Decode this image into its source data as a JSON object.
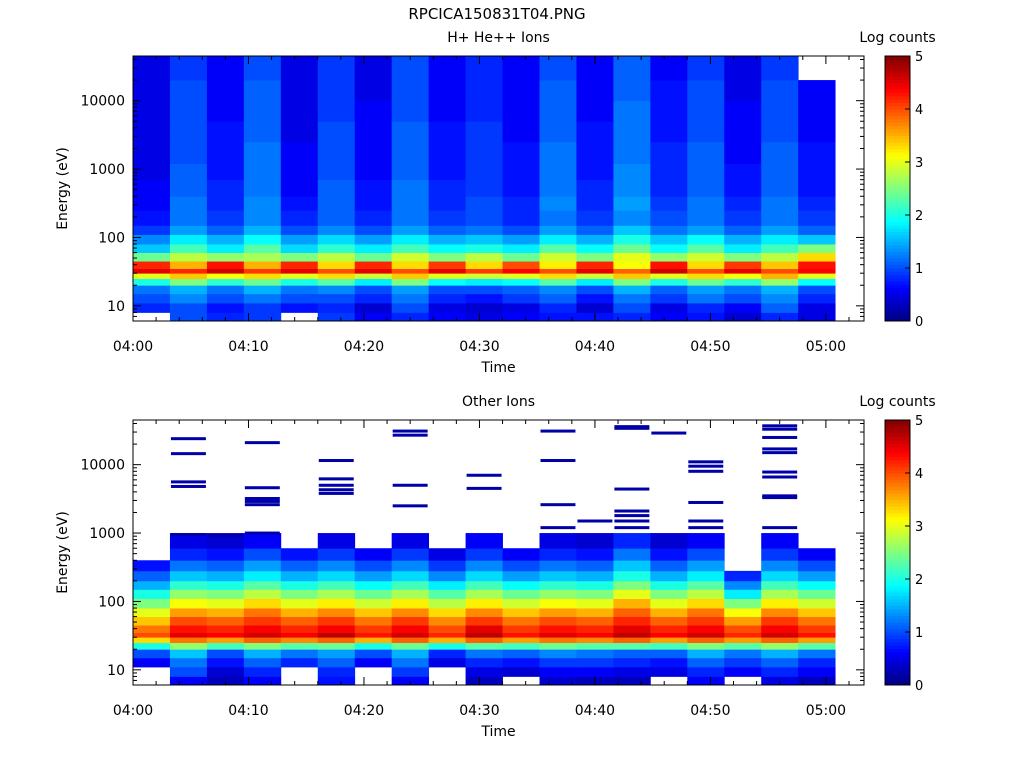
{
  "title": "RPCICA150831T04.PNG",
  "colormap": [
    "#00007f",
    "#0000ff",
    "#007fff",
    "#00ffff",
    "#7fff7f",
    "#ffff00",
    "#ff7f00",
    "#ff0000",
    "#7f0000"
  ],
  "chart_data": [
    {
      "type": "heatmap",
      "title": "H+ He++ Ions",
      "xlabel": "Time",
      "ylabel": "Energy (eV)",
      "x_tick_labels": [
        "04:00",
        "04:10",
        "04:20",
        "04:30",
        "04:40",
        "04:50",
        "05:00"
      ],
      "x_tick_minutes": [
        0,
        10,
        20,
        30,
        40,
        50,
        60
      ],
      "xlim_minutes": [
        0,
        63.3
      ],
      "y_scale": "log",
      "ylim": [
        6,
        45000
      ],
      "y_tick_labels": [
        "10",
        "100",
        "1000",
        "10000"
      ],
      "y_tick_values": [
        10,
        100,
        1000,
        10000
      ],
      "colorbar_label": "Log counts",
      "colorbar_range": [
        0,
        5
      ],
      "colorbar_tick_labels": [
        "0",
        "1",
        "2",
        "3",
        "4",
        "5"
      ],
      "grid": false,
      "time_bin_edges_minutes": [
        0,
        3.2,
        6.4,
        9.6,
        12.8,
        16.0,
        19.2,
        22.4,
        25.6,
        28.8,
        32.0,
        35.2,
        38.4,
        41.6,
        44.8,
        48.0,
        51.2,
        54.4,
        57.6,
        60.8
      ],
      "energy_bands_eV": [
        6,
        8,
        11,
        15,
        20,
        25,
        30,
        35,
        45,
        60,
        80,
        110,
        150,
        250,
        400,
        700,
        1200,
        2500,
        5000,
        10000,
        20000,
        45000
      ],
      "log_counts": [
        [
          null,
          1.0,
          0.8,
          0.9,
          null,
          0.9,
          0.6,
          0.8,
          0.6,
          0.5,
          0.6,
          0.7,
          0.7,
          0.8,
          0.6,
          0.7,
          0.4,
          0.8,
          0.5
        ],
        [
          0.8,
          1.0,
          0.7,
          0.9,
          0.7,
          0.8,
          0.4,
          1.0,
          0.5,
          0.4,
          0.5,
          0.8,
          0.4,
          1.0,
          0.5,
          0.8,
          0.6,
          1.1,
          0.5
        ],
        [
          1.0,
          1.3,
          1.0,
          1.2,
          1.0,
          1.0,
          0.8,
          1.2,
          0.8,
          0.7,
          0.9,
          1.1,
          0.7,
          1.2,
          0.9,
          1.2,
          1.0,
          1.3,
          0.8
        ],
        [
          1.2,
          1.5,
          1.2,
          1.5,
          1.2,
          1.3,
          1.0,
          1.4,
          1.0,
          1.0,
          1.1,
          1.3,
          1.0,
          1.5,
          1.1,
          1.4,
          1.2,
          1.5,
          1.0
        ],
        [
          2.0,
          2.5,
          2.1,
          2.4,
          2.0,
          2.3,
          1.8,
          2.5,
          1.9,
          1.8,
          1.9,
          2.3,
          1.8,
          2.5,
          2.0,
          2.4,
          2.1,
          2.6,
          1.9
        ],
        [
          3.0,
          3.4,
          3.1,
          3.3,
          3.0,
          3.3,
          2.9,
          3.4,
          3.0,
          2.9,
          3.0,
          3.3,
          2.9,
          3.4,
          3.0,
          3.3,
          3.1,
          3.5,
          3.0
        ],
        [
          4.5,
          4.2,
          4.6,
          4.1,
          4.5,
          4.0,
          4.5,
          4.0,
          4.5,
          4.1,
          4.4,
          4.0,
          4.5,
          3.9,
          4.6,
          4.0,
          4.5,
          4.0,
          4.4
        ],
        [
          4.2,
          3.5,
          4.3,
          3.5,
          4.2,
          3.3,
          4.2,
          3.3,
          4.1,
          3.3,
          4.0,
          3.2,
          4.2,
          3.1,
          4.3,
          3.3,
          4.1,
          3.4,
          4.3
        ],
        [
          2.4,
          2.8,
          2.6,
          2.7,
          2.5,
          2.8,
          2.4,
          2.9,
          2.5,
          2.8,
          2.4,
          2.9,
          2.5,
          3.0,
          2.6,
          2.9,
          2.5,
          2.8,
          3.3
        ],
        [
          1.6,
          2.2,
          1.8,
          2.3,
          1.7,
          2.1,
          1.8,
          2.2,
          1.9,
          2.0,
          1.8,
          2.3,
          1.9,
          2.4,
          1.9,
          2.3,
          1.8,
          2.2,
          2.5
        ],
        [
          1.3,
          1.8,
          1.5,
          1.9,
          1.4,
          1.7,
          1.4,
          1.8,
          1.5,
          1.6,
          1.4,
          1.8,
          1.5,
          2.0,
          1.6,
          1.9,
          1.5,
          1.8,
          1.6
        ],
        [
          0.9,
          1.4,
          1.1,
          1.5,
          1.0,
          1.3,
          1.0,
          1.4,
          1.1,
          1.2,
          1.0,
          1.4,
          1.1,
          1.6,
          1.2,
          1.4,
          1.1,
          1.4,
          1.1
        ],
        [
          0.7,
          1.2,
          0.9,
          1.3,
          0.8,
          1.1,
          0.8,
          1.2,
          0.9,
          1.0,
          0.8,
          1.2,
          0.9,
          1.3,
          1.0,
          1.2,
          0.9,
          1.2,
          0.9
        ],
        [
          0.6,
          1.2,
          0.8,
          1.3,
          0.7,
          1.1,
          0.7,
          1.2,
          0.8,
          1.0,
          0.8,
          1.3,
          0.8,
          1.4,
          0.9,
          1.2,
          0.8,
          1.2,
          0.8
        ],
        [
          0.6,
          1.1,
          0.8,
          1.2,
          0.6,
          1.1,
          0.7,
          1.2,
          0.8,
          0.9,
          0.7,
          1.2,
          0.8,
          1.3,
          0.8,
          1.1,
          0.7,
          1.1,
          0.7
        ],
        [
          0.5,
          1.1,
          0.7,
          1.2,
          0.6,
          1.0,
          0.6,
          1.1,
          0.7,
          0.9,
          0.7,
          1.2,
          0.7,
          1.3,
          0.8,
          1.1,
          0.7,
          1.1,
          0.7
        ],
        [
          0.5,
          1.0,
          0.7,
          1.2,
          0.6,
          1.0,
          0.6,
          1.1,
          0.7,
          0.9,
          0.7,
          1.2,
          0.7,
          1.2,
          0.8,
          1.1,
          0.6,
          1.1,
          0.7
        ],
        [
          0.5,
          1.0,
          0.7,
          1.1,
          0.5,
          1.0,
          0.6,
          1.1,
          0.7,
          0.9,
          0.6,
          1.1,
          0.7,
          1.2,
          0.7,
          1.0,
          0.6,
          1.0,
          0.6
        ],
        [
          0.5,
          1.0,
          0.6,
          1.1,
          0.5,
          0.9,
          0.6,
          1.0,
          0.6,
          0.8,
          0.6,
          1.1,
          0.6,
          1.2,
          0.7,
          1.0,
          0.6,
          1.0,
          0.6
        ],
        [
          0.5,
          1.0,
          0.6,
          1.1,
          0.5,
          0.9,
          0.5,
          1.0,
          0.6,
          0.8,
          0.6,
          1.1,
          0.6,
          1.1,
          0.7,
          1.0,
          0.5,
          1.0,
          0.6
        ],
        [
          0.5,
          0.9,
          0.6,
          1.0,
          0.5,
          0.9,
          0.5,
          1.0,
          0.6,
          0.8,
          0.6,
          1.0,
          0.6,
          1.1,
          0.6,
          0.9,
          0.5,
          0.9,
          null
        ]
      ]
    },
    {
      "type": "heatmap",
      "title": "Other Ions",
      "xlabel": "Time",
      "ylabel": "Energy (eV)",
      "x_tick_labels": [
        "04:00",
        "04:10",
        "04:20",
        "04:30",
        "04:40",
        "04:50",
        "05:00"
      ],
      "x_tick_minutes": [
        0,
        10,
        20,
        30,
        40,
        50,
        60
      ],
      "xlim_minutes": [
        0,
        63.3
      ],
      "y_scale": "log",
      "ylim": [
        6,
        45000
      ],
      "y_tick_labels": [
        "10",
        "100",
        "1000",
        "10000"
      ],
      "y_tick_values": [
        10,
        100,
        1000,
        10000
      ],
      "colorbar_label": "Log counts",
      "colorbar_range": [
        0,
        5
      ],
      "colorbar_tick_labels": [
        "0",
        "1",
        "2",
        "3",
        "4",
        "5"
      ],
      "grid": false,
      "time_bin_edges_minutes": [
        0,
        3.2,
        6.4,
        9.6,
        12.8,
        16.0,
        19.2,
        22.4,
        25.6,
        28.8,
        32.0,
        35.2,
        38.4,
        41.6,
        44.8,
        48.0,
        51.2,
        54.4,
        57.6,
        60.8
      ],
      "energy_bands_eV": [
        6,
        8,
        11,
        15,
        20,
        25,
        30,
        35,
        45,
        60,
        80,
        110,
        150,
        200,
        280,
        400,
        600,
        1000
      ],
      "log_counts": [
        [
          null,
          0.6,
          0.3,
          0.6,
          null,
          0.7,
          null,
          0.6,
          null,
          0.3,
          null,
          0.4,
          0.3,
          0.3,
          null,
          0.6,
          null,
          0.5,
          0.3
        ],
        [
          null,
          1.0,
          0.4,
          0.8,
          null,
          0.8,
          null,
          0.9,
          null,
          0.5,
          0.4,
          0.6,
          0.6,
          0.5,
          0.5,
          0.8,
          0.6,
          0.8,
          0.6
        ],
        [
          0.6,
          1.2,
          0.7,
          1.1,
          0.8,
          1.1,
          0.6,
          1.2,
          0.5,
          0.8,
          0.7,
          0.9,
          0.9,
          0.8,
          0.7,
          1.1,
          0.9,
          1.1,
          0.8
        ],
        [
          1.0,
          1.6,
          1.0,
          1.5,
          1.2,
          1.4,
          1.0,
          1.5,
          0.8,
          1.2,
          1.1,
          1.3,
          1.2,
          1.1,
          1.1,
          1.5,
          1.2,
          1.5,
          1.2
        ],
        [
          2.0,
          2.6,
          2.2,
          2.5,
          2.3,
          2.4,
          2.0,
          2.4,
          2.0,
          2.3,
          2.2,
          2.4,
          2.3,
          2.3,
          2.2,
          2.5,
          2.3,
          2.6,
          2.3
        ],
        [
          3.3,
          3.8,
          3.6,
          3.9,
          3.7,
          3.9,
          3.5,
          3.9,
          3.5,
          3.9,
          3.6,
          3.8,
          3.7,
          3.9,
          3.6,
          3.9,
          3.6,
          3.9,
          3.6
        ],
        [
          4.0,
          4.5,
          4.4,
          4.6,
          4.4,
          4.7,
          4.3,
          4.6,
          4.2,
          4.7,
          4.3,
          4.5,
          4.4,
          4.7,
          4.4,
          4.6,
          4.2,
          4.6,
          4.3
        ],
        [
          3.8,
          4.3,
          4.2,
          4.4,
          4.2,
          4.4,
          4.1,
          4.4,
          4.0,
          4.5,
          4.1,
          4.3,
          4.2,
          4.5,
          4.2,
          4.4,
          4.0,
          4.4,
          4.1
        ],
        [
          3.4,
          4.0,
          3.9,
          4.1,
          3.9,
          4.1,
          3.8,
          4.1,
          3.7,
          4.1,
          3.8,
          4.0,
          3.9,
          4.2,
          3.9,
          4.1,
          3.6,
          4.1,
          3.8
        ],
        [
          3.0,
          3.6,
          3.5,
          3.8,
          3.5,
          3.7,
          3.4,
          3.7,
          3.3,
          3.7,
          3.4,
          3.6,
          3.5,
          3.9,
          3.5,
          3.8,
          3.1,
          3.7,
          3.4
        ],
        [
          2.5,
          3.1,
          3.0,
          3.3,
          3.0,
          3.2,
          2.9,
          3.2,
          2.8,
          3.2,
          2.9,
          3.1,
          3.0,
          3.5,
          3.0,
          3.3,
          2.5,
          3.2,
          2.9
        ],
        [
          2.0,
          2.6,
          2.5,
          2.8,
          2.5,
          2.7,
          2.4,
          2.7,
          2.3,
          2.7,
          2.4,
          2.6,
          2.5,
          3.0,
          2.5,
          2.8,
          1.8,
          2.7,
          2.4
        ],
        [
          1.5,
          2.1,
          2.0,
          2.3,
          2.0,
          2.2,
          1.9,
          2.2,
          1.8,
          2.2,
          1.9,
          2.1,
          2.0,
          2.5,
          2.0,
          2.3,
          1.3,
          2.2,
          1.9
        ],
        [
          1.1,
          1.6,
          1.5,
          1.8,
          1.5,
          1.7,
          1.4,
          1.7,
          1.3,
          1.7,
          1.4,
          1.6,
          1.5,
          2.0,
          1.5,
          1.8,
          0.8,
          1.7,
          1.4
        ],
        [
          0.7,
          1.2,
          1.1,
          1.4,
          1.1,
          1.3,
          1.0,
          1.3,
          0.9,
          1.3,
          1.0,
          1.2,
          1.1,
          1.6,
          1.1,
          1.4,
          null,
          1.3,
          1.0
        ],
        [
          null,
          0.8,
          0.7,
          1.0,
          0.7,
          0.9,
          0.6,
          0.9,
          0.5,
          0.9,
          0.6,
          0.8,
          0.7,
          1.2,
          0.7,
          1.0,
          null,
          0.9,
          0.6
        ],
        [
          null,
          0.5,
          0.4,
          0.6,
          null,
          0.5,
          null,
          0.5,
          null,
          0.6,
          null,
          0.5,
          0.4,
          0.8,
          0.4,
          0.6,
          null,
          0.6,
          null
        ]
      ],
      "sparse_counts": [
        {
          "bin": 1,
          "energies_eV": [
            24000,
            14500,
            5600,
            4800,
            950
          ]
        },
        {
          "bin": 2,
          "energies_eV": [
            930
          ]
        },
        {
          "bin": 3,
          "energies_eV": [
            21000,
            4600,
            3200,
            2900,
            2600,
            1000
          ]
        },
        {
          "bin": 5,
          "energies_eV": [
            11500,
            6200,
            5000,
            4300,
            3800
          ]
        },
        {
          "bin": 7,
          "energies_eV": [
            31000,
            27000,
            5000,
            2500
          ]
        },
        {
          "bin": 9,
          "energies_eV": [
            7000,
            4500
          ]
        },
        {
          "bin": 11,
          "energies_eV": [
            31000,
            11500,
            2600,
            1200
          ]
        },
        {
          "bin": 12,
          "energies_eV": [
            1500
          ]
        },
        {
          "bin": 13,
          "energies_eV": [
            36000,
            34000,
            4400,
            2100,
            1800,
            1500,
            1200
          ]
        },
        {
          "bin": 14,
          "energies_eV": [
            29000
          ]
        },
        {
          "bin": 15,
          "energies_eV": [
            11000,
            9500,
            8000,
            2800,
            1500,
            1200
          ]
        },
        {
          "bin": 17,
          "energies_eV": [
            37000,
            33000,
            25000,
            17000,
            15000,
            7800,
            6600,
            3500,
            3300,
            1200
          ]
        }
      ]
    }
  ]
}
